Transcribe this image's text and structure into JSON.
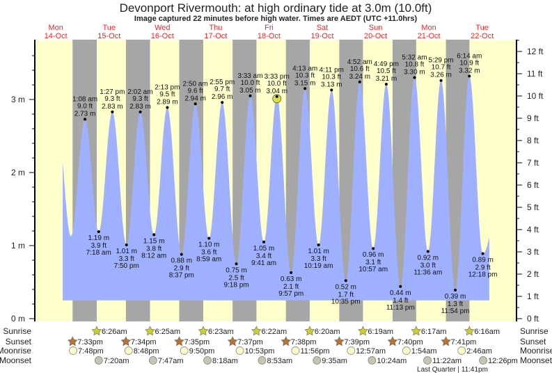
{
  "chart_data": {
    "type": "area",
    "title": "Devonport Rivermouth: at high  ordinary tide at 3.0m (10.0ft)",
    "subtitle": "Image captured 22 minutes before high water. Times are AEDT (UTC +11.0hrs)",
    "days": [
      {
        "dow": "Mon",
        "date": "14-Oct"
      },
      {
        "dow": "Tue",
        "date": "15-Oct"
      },
      {
        "dow": "Wed",
        "date": "16-Oct"
      },
      {
        "dow": "Thu",
        "date": "17-Oct"
      },
      {
        "dow": "Fri",
        "date": "18-Oct"
      },
      {
        "dow": "Sat",
        "date": "19-Oct"
      },
      {
        "dow": "Sun",
        "date": "20-Oct"
      },
      {
        "dow": "Mon",
        "date": "21-Oct"
      },
      {
        "dow": "Tue",
        "date": "22-Oct"
      }
    ],
    "left_axis": {
      "unit": "m",
      "ticks": [
        "0 m",
        "1 m",
        "2 m",
        "3 m"
      ],
      "ylim": [
        0,
        3.8
      ]
    },
    "right_axis": {
      "unit": "ft",
      "ticks": [
        "0 ft",
        "1 ft",
        "2 ft",
        "3 ft",
        "4 ft",
        "5 ft",
        "6 ft",
        "7 ft",
        "8 ft",
        "9 ft",
        "10 ft",
        "11 ft",
        "12 ft"
      ]
    },
    "extremes": [
      {
        "type": "high",
        "day": 1,
        "time": "1:08 am",
        "ft": "9.0 ft",
        "m": "2.73 m",
        "value": 2.73
      },
      {
        "type": "low",
        "day": 1,
        "time": "7:18 am",
        "ft": "3.9 ft",
        "m": "1.19 m",
        "value": 1.19
      },
      {
        "type": "high",
        "day": 1,
        "time": "1:27 pm",
        "ft": "9.3 ft",
        "m": "2.83 m",
        "value": 2.83
      },
      {
        "type": "low",
        "day": 1,
        "time": "7:50 pm",
        "ft": "3.3 ft",
        "m": "1.01 m",
        "value": 1.01
      },
      {
        "type": "high",
        "day": 2,
        "time": "2:02 am",
        "ft": "9.3 ft",
        "m": "2.83 m",
        "value": 2.83
      },
      {
        "type": "low",
        "day": 2,
        "time": "8:12 am",
        "ft": "3.8 ft",
        "m": "1.15 m",
        "value": 1.15
      },
      {
        "type": "high",
        "day": 2,
        "time": "2:13 pm",
        "ft": "9.5 ft",
        "m": "2.89 m",
        "value": 2.89
      },
      {
        "type": "low",
        "day": 2,
        "time": "8:37 pm",
        "ft": "2.9 ft",
        "m": "0.88 m",
        "value": 0.88
      },
      {
        "type": "high",
        "day": 3,
        "time": "2:50 am",
        "ft": "9.6 ft",
        "m": "2.94 m",
        "value": 2.94
      },
      {
        "type": "low",
        "day": 3,
        "time": "8:59 am",
        "ft": "3.6 ft",
        "m": "1.10 m",
        "value": 1.1
      },
      {
        "type": "high",
        "day": 3,
        "time": "2:55 pm",
        "ft": "9.7 ft",
        "m": "2.96 m",
        "value": 2.96
      },
      {
        "type": "low",
        "day": 3,
        "time": "9:18 pm",
        "ft": "2.5 ft",
        "m": "0.75 m",
        "value": 0.75
      },
      {
        "type": "high",
        "day": 4,
        "time": "3:33 am",
        "ft": "10.0 ft",
        "m": "3.05 m",
        "value": 3.05
      },
      {
        "type": "low",
        "day": 4,
        "time": "9:41 am",
        "ft": "3.4 ft",
        "m": "1.05 m",
        "value": 1.05
      },
      {
        "type": "high",
        "day": 4,
        "time": "3:33 pm",
        "ft": "10.0 ft",
        "m": "3.04 m",
        "value": 3.04,
        "current": true
      },
      {
        "type": "low",
        "day": 4,
        "time": "9:57 pm",
        "ft": "2.1 ft",
        "m": "0.63 m",
        "value": 0.63
      },
      {
        "type": "high",
        "day": 5,
        "time": "4:13 am",
        "ft": "10.3 ft",
        "m": "3.15 m",
        "value": 3.15
      },
      {
        "type": "low",
        "day": 5,
        "time": "10:19 am",
        "ft": "3.3 ft",
        "m": "1.01 m",
        "value": 1.01
      },
      {
        "type": "high",
        "day": 5,
        "time": "4:11 pm",
        "ft": "10.3 ft",
        "m": "3.13 m",
        "value": 3.13
      },
      {
        "type": "low",
        "day": 5,
        "time": "10:35 pm",
        "ft": "1.7 ft",
        "m": "0.52 m",
        "value": 0.52
      },
      {
        "type": "high",
        "day": 6,
        "time": "4:52 am",
        "ft": "10.6 ft",
        "m": "3.24 m",
        "value": 3.24
      },
      {
        "type": "low",
        "day": 6,
        "time": "10:57 am",
        "ft": "3.1 ft",
        "m": "0.96 m",
        "value": 0.96
      },
      {
        "type": "high",
        "day": 6,
        "time": "4:49 pm",
        "ft": "10.5 ft",
        "m": "3.21 m",
        "value": 3.21
      },
      {
        "type": "low",
        "day": 6,
        "time": "11:13 pm",
        "ft": "1.4 ft",
        "m": "0.44 m",
        "value": 0.44
      },
      {
        "type": "high",
        "day": 7,
        "time": "5:32 am",
        "ft": "10.8 ft",
        "m": "3.30 m",
        "value": 3.3
      },
      {
        "type": "low",
        "day": 7,
        "time": "11:36 am",
        "ft": "3.0 ft",
        "m": "0.92 m",
        "value": 0.92
      },
      {
        "type": "high",
        "day": 7,
        "time": "5:29 pm",
        "ft": "10.7 ft",
        "m": "3.26 m",
        "value": 3.26
      },
      {
        "type": "low",
        "day": 7,
        "time": "11:54 pm",
        "ft": "1.3 ft",
        "m": "0.39 m",
        "value": 0.39
      },
      {
        "type": "high",
        "day": 8,
        "time": "6:14 am",
        "ft": "10.9 ft",
        "m": "3.32 m",
        "value": 3.32
      },
      {
        "type": "low",
        "day": 8,
        "time": "12:18 pm",
        "ft": "2.9 ft",
        "m": "0.89 m",
        "value": 0.89
      }
    ],
    "rows": {
      "labels": {
        "sunrise": "Sunrise",
        "sunset": "Sunset",
        "moonrise": "Moonrise",
        "moonset": "Moonset"
      },
      "sunrise": [
        {
          "day": 1,
          "time": "6:26am"
        },
        {
          "day": 2,
          "time": "6:25am"
        },
        {
          "day": 3,
          "time": "6:23am"
        },
        {
          "day": 4,
          "time": "6:22am"
        },
        {
          "day": 5,
          "time": "6:20am"
        },
        {
          "day": 6,
          "time": "6:19am"
        },
        {
          "day": 7,
          "time": "6:17am"
        },
        {
          "day": 8,
          "time": "6:16am"
        }
      ],
      "sunset": [
        {
          "day": 0,
          "time": "7:33pm"
        },
        {
          "day": 1,
          "time": "7:34pm"
        },
        {
          "day": 2,
          "time": "7:35pm"
        },
        {
          "day": 3,
          "time": "7:37pm"
        },
        {
          "day": 4,
          "time": "7:38pm"
        },
        {
          "day": 5,
          "time": "7:39pm"
        },
        {
          "day": 6,
          "time": "7:40pm"
        },
        {
          "day": 7,
          "time": "7:41pm"
        }
      ],
      "moonrise": [
        {
          "day": 0,
          "time": "7:48pm"
        },
        {
          "day": 1,
          "time": "8:48pm"
        },
        {
          "day": 2,
          "time": "9:50pm"
        },
        {
          "day": 3,
          "time": "10:53pm"
        },
        {
          "day": 4,
          "time": "11:56pm"
        },
        {
          "day": 6,
          "time": "12:57am"
        },
        {
          "day": 7,
          "time": "1:54am"
        },
        {
          "day": 8,
          "time": "2:46am"
        }
      ],
      "moonset": [
        {
          "day": 1,
          "time": "7:20am"
        },
        {
          "day": 2,
          "time": "7:47am"
        },
        {
          "day": 3,
          "time": "8:18am"
        },
        {
          "day": 4,
          "time": "8:53am"
        },
        {
          "day": 5,
          "time": "9:35am"
        },
        {
          "day": 6,
          "time": "10:24am"
        },
        {
          "day": 7,
          "time": "11:22am"
        },
        {
          "day": 8,
          "time": "12:26pm"
        }
      ]
    },
    "moon_phase": "Last Quarter | 11:41pm",
    "colors": {
      "day": "#ffffcc",
      "night": "#a6a6a6",
      "water": "#9fb0ff",
      "day_label": "#ff2020",
      "sunrise": "#cccc33",
      "sunset": "#b87333",
      "moonrise": "#ffffcc",
      "moonset": "#c8c4b4",
      "current_marker": "#dddd44"
    }
  }
}
